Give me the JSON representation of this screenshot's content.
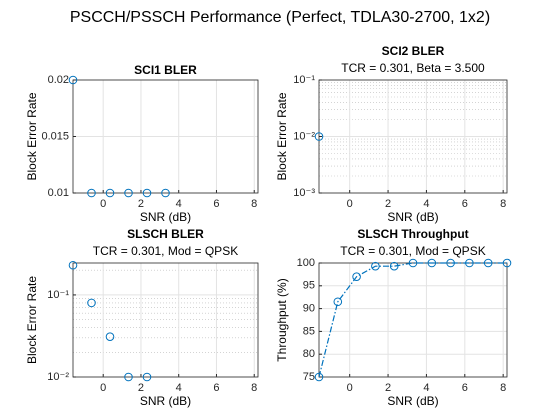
{
  "title": "PSCCH/PSSCH Performance (Perfect, TDLA30-2700, 1x2)",
  "chart_data": [
    {
      "type": "scatter",
      "title": "SCI1 BLER",
      "xlabel": "SNR (dB)",
      "ylabel": "Block Error Rate",
      "xlim": [
        -1.6,
        8.2
      ],
      "xticks": [
        0,
        2,
        4,
        6,
        8
      ],
      "ylim": [
        0.01,
        0.02
      ],
      "yticks": [
        0.01,
        0.015,
        0.02
      ],
      "grid": true,
      "x": [
        -1.6,
        -0.62,
        0.36,
        1.34,
        2.32,
        3.3
      ],
      "series": [
        {
          "color": "#0072BD",
          "linestyle": "none",
          "values": [
            0.02,
            0.01,
            0.01,
            0.01,
            0.01,
            0.01
          ]
        }
      ]
    },
    {
      "type": "scatter",
      "title": "SCI2 BLER",
      "subtitle": "TCR = 0.301, Beta = 3.500",
      "xlabel": "SNR (dB)",
      "ylabel": "Block Error Rate",
      "xlim": [
        -1.6,
        8.2
      ],
      "xticks": [
        0,
        2,
        4,
        6,
        8
      ],
      "ylim": [
        0.001,
        0.1
      ],
      "yscale": "log",
      "grid": true,
      "yticks": [
        {
          "value": 0.001,
          "label": "10⁻³"
        },
        {
          "value": 0.01,
          "label": "10⁻²"
        },
        {
          "value": 0.1,
          "label": "10⁻¹"
        }
      ],
      "x": [
        -1.6
      ],
      "series": [
        {
          "color": "#0072BD",
          "linestyle": "none",
          "values": [
            0.01
          ]
        }
      ]
    },
    {
      "type": "scatter",
      "title": "SLSCH BLER",
      "subtitle": "TCR = 0.301, Mod = QPSK",
      "xlabel": "SNR (dB)",
      "ylabel": "Block Error Rate",
      "xlim": [
        -1.6,
        8.2
      ],
      "xticks": [
        0,
        2,
        4,
        6,
        8
      ],
      "ylim": [
        0.01,
        0.245
      ],
      "yscale": "log",
      "grid": true,
      "yticks": [
        {
          "value": 0.01,
          "label": "10⁻²"
        },
        {
          "value": 0.1,
          "label": "10⁻¹"
        }
      ],
      "x": [
        -1.6,
        -0.62,
        0.36,
        1.34,
        2.32
      ],
      "series": [
        {
          "color": "#0072BD",
          "linestyle": "none",
          "values": [
            0.23,
            0.08,
            0.031,
            0.01,
            0.01
          ]
        }
      ]
    },
    {
      "type": "line",
      "title": "SLSCH Throughput",
      "subtitle": "TCR = 0.301, Mod = QPSK",
      "xlabel": "SNR (dB)",
      "ylabel": "Throughput (%)",
      "xlim": [
        -1.6,
        8.2
      ],
      "xticks": [
        0,
        2,
        4,
        6,
        8
      ],
      "ylim": [
        75,
        100
      ],
      "yticks": [
        75,
        80,
        85,
        90,
        95,
        100
      ],
      "grid": true,
      "x": [
        -1.6,
        -0.62,
        0.36,
        1.34,
        2.32,
        3.3,
        4.28,
        5.26,
        6.24,
        7.22,
        8.2
      ],
      "series": [
        {
          "color": "#0072BD",
          "linestyle": "-.",
          "values": [
            75,
            91.5,
            97,
            99.3,
            99.3,
            100,
            100,
            100,
            100,
            100,
            100
          ]
        }
      ]
    }
  ]
}
